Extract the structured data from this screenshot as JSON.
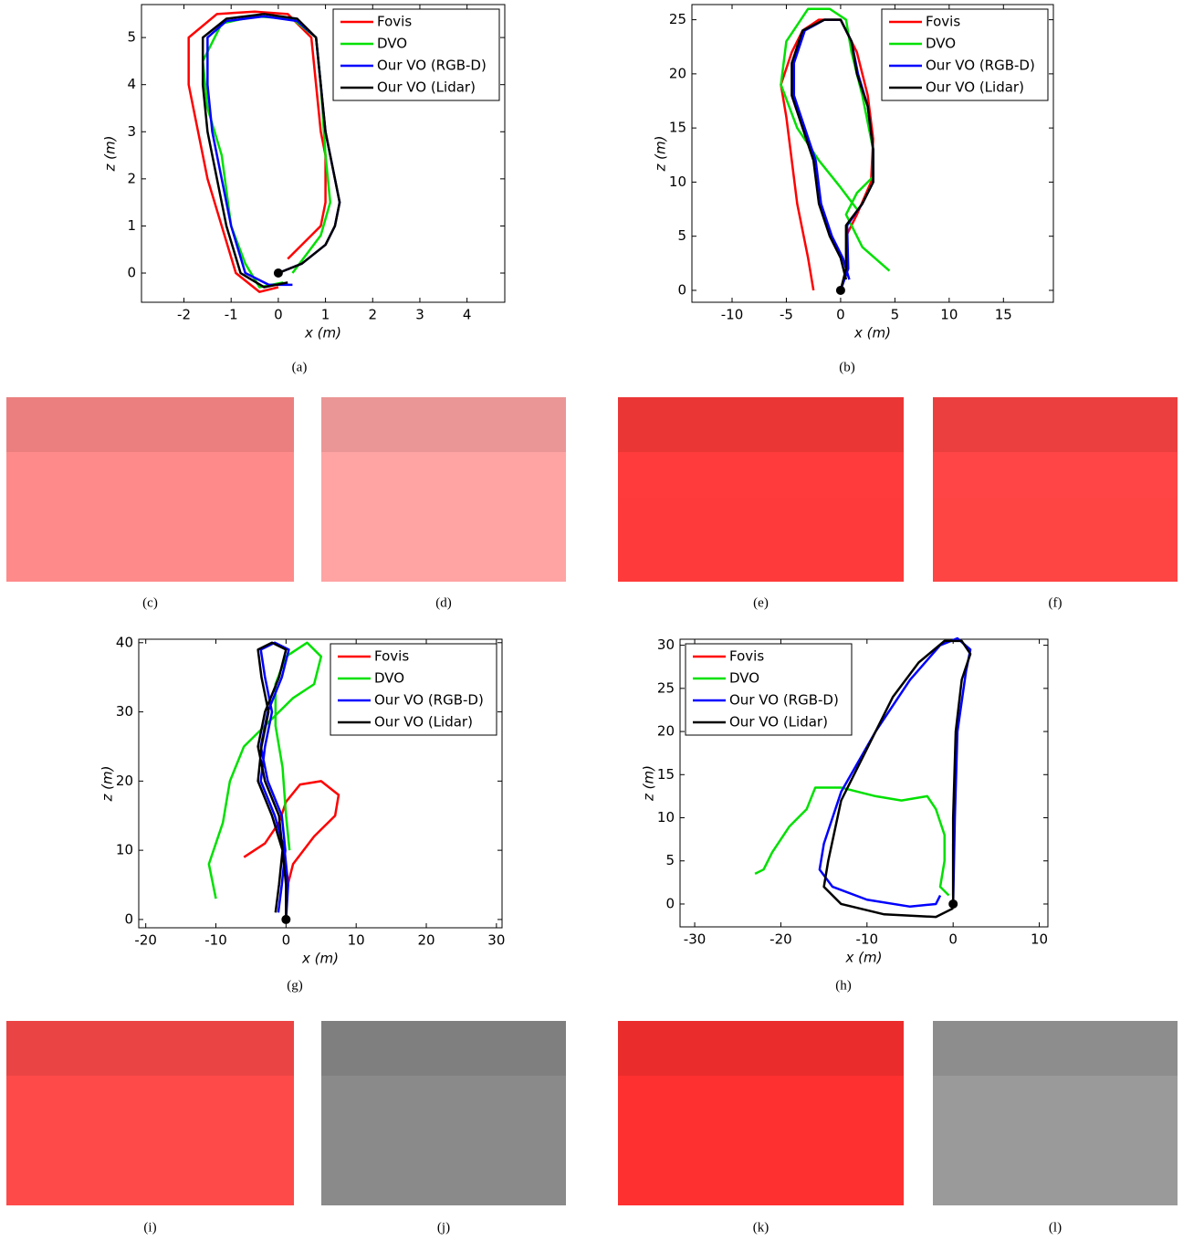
{
  "chart_data": [
    {
      "type": "line",
      "caption": "(a)",
      "xlabel": "x (m)",
      "ylabel": "z (m)",
      "legend": "upper right",
      "xlim": [
        -2.9,
        4.8
      ],
      "ylim": [
        -0.62,
        5.7
      ],
      "xticks": [
        -2,
        -1,
        0,
        1,
        2,
        3,
        4
      ],
      "yticks": [
        0,
        1,
        2,
        3,
        4,
        5
      ],
      "series": [
        {
          "name": "Fovis",
          "color": "#ff0000",
          "x": [
            0.2,
            0.9,
            1.0,
            1.0,
            0.9,
            0.8,
            0.7,
            0.2,
            -0.5,
            -1.3,
            -1.9,
            -1.9,
            -1.7,
            -1.5,
            -1.2,
            -0.9,
            -0.4,
            0
          ],
          "values": [
            0.3,
            1,
            1.5,
            2.5,
            3,
            4,
            5,
            5.5,
            5.55,
            5.5,
            5,
            4,
            3,
            2,
            1,
            0,
            -0.4,
            -0.3
          ]
        },
        {
          "name": "DVO",
          "color": "#00e000",
          "x": [
            0.3,
            0.9,
            1.1,
            1.0,
            0.9,
            0.8,
            0.3,
            -0.5,
            -1.2,
            -1.6,
            -1.5,
            -1.2,
            -1.0,
            -0.7,
            -0.4,
            0.1
          ],
          "values": [
            0,
            0.8,
            1.5,
            2.5,
            4,
            5,
            5.4,
            5.45,
            5.3,
            4.5,
            3.5,
            2.5,
            1,
            0.2,
            -0.3,
            -0.2
          ]
        },
        {
          "name": "Our VO (RGB-D)",
          "color": "#0000ff",
          "x": [
            0,
            0.5,
            1.0,
            1.2,
            1.3,
            1.1,
            1.0,
            0.9,
            0.8,
            0.4,
            -0.3,
            -1.1,
            -1.5,
            -1.5,
            -1.4,
            -1.2,
            -1.0,
            -0.7,
            -0.2,
            0.3
          ],
          "values": [
            0,
            0.2,
            0.6,
            1,
            1.5,
            2.5,
            3,
            4,
            5,
            5.35,
            5.45,
            5.35,
            5,
            4,
            3,
            2,
            1,
            0,
            -0.25,
            -0.25
          ]
        },
        {
          "name": "Our VO (Lidar)",
          "color": "#000000",
          "x": [
            0,
            0.5,
            1.0,
            1.2,
            1.3,
            1.1,
            1.0,
            0.9,
            0.8,
            0.4,
            -0.3,
            -1.1,
            -1.6,
            -1.6,
            -1.5,
            -1.3,
            -1.1,
            -0.8,
            -0.3,
            0.2
          ],
          "values": [
            0,
            0.2,
            0.6,
            1,
            1.5,
            2.5,
            3,
            4,
            5,
            5.4,
            5.5,
            5.4,
            5,
            4,
            3,
            2,
            1,
            0,
            -0.3,
            -0.2
          ]
        }
      ]
    },
    {
      "type": "line",
      "caption": "(b)",
      "xlabel": "x (m)",
      "ylabel": "z (m)",
      "legend": "upper right",
      "xlim": [
        -13.7,
        19.6
      ],
      "ylim": [
        -1.1,
        26.4
      ],
      "xticks": [
        -10,
        -5,
        0,
        5,
        10,
        15
      ],
      "yticks": [
        0,
        5,
        10,
        15,
        20,
        25
      ],
      "series": [
        {
          "name": "Fovis",
          "color": "#ff0000",
          "x": [
            -2.5,
            -3,
            -4,
            -4.5,
            -5,
            -5.5,
            -4.5,
            -3.5,
            -2,
            0,
            1.5,
            2.5,
            3,
            2.8,
            1.5,
            0.5
          ],
          "values": [
            0,
            3,
            8,
            12,
            16,
            19,
            22,
            24,
            25,
            25,
            22,
            18,
            14,
            10,
            7,
            5
          ]
        },
        {
          "name": "DVO",
          "color": "#00e000",
          "x": [
            4.5,
            2,
            0.5,
            1.5,
            3,
            3,
            2,
            1,
            0.5,
            -1,
            -3,
            -5,
            -5.5,
            -4,
            -2,
            0,
            1.5
          ],
          "values": [
            1.8,
            4,
            7,
            9,
            10.5,
            13,
            18,
            22,
            25,
            26,
            26,
            23,
            19,
            15,
            12,
            9.5,
            7.5
          ]
        },
        {
          "name": "Our VO (RGB-D)",
          "color": "#0000ff",
          "x": [
            0,
            0.7,
            0.6,
            2,
            3,
            3,
            2.5,
            1.6,
            1,
            0,
            -1.5,
            -3.3,
            -4.3,
            -4.3,
            -3.3,
            -2.3,
            -1.8,
            -0.8,
            0.2,
            0.8
          ],
          "values": [
            0,
            2,
            6,
            8,
            10,
            13,
            17,
            20,
            23,
            25,
            25,
            24,
            21,
            18,
            15,
            12,
            8,
            5,
            3,
            1
          ]
        },
        {
          "name": "Our VO (Lidar)",
          "color": "#000000",
          "x": [
            0,
            0.5,
            0.5,
            2,
            3,
            3,
            2.5,
            1.5,
            1,
            0,
            -1.5,
            -3.5,
            -4.5,
            -4.5,
            -3.5,
            -2.5,
            -2,
            -1,
            0,
            0.5
          ],
          "values": [
            0,
            2,
            6,
            8,
            10,
            13,
            17,
            20,
            23,
            25,
            25,
            24,
            21,
            18,
            15,
            12,
            8,
            5,
            3,
            1
          ]
        }
      ]
    },
    {
      "type": "line",
      "caption": "(g)",
      "xlabel": "x (m)",
      "ylabel": "z (m)",
      "legend": "upper right",
      "xlim": [
        -21,
        30.8
      ],
      "ylim": [
        -1.2,
        40.5
      ],
      "xticks": [
        -20,
        -10,
        0,
        10,
        20,
        30
      ],
      "yticks": [
        0,
        10,
        20,
        30,
        40
      ],
      "series": [
        {
          "name": "Fovis",
          "color": "#ff0000",
          "x": [
            -6,
            -3,
            -1,
            0,
            2,
            5,
            7.5,
            7,
            4,
            1,
            0,
            0
          ],
          "values": [
            9,
            11,
            14,
            17,
            19.5,
            20,
            18,
            15,
            12,
            8,
            4,
            0
          ]
        },
        {
          "name": "DVO",
          "color": "#00e000",
          "x": [
            -10,
            -11,
            -9,
            -8,
            -6,
            -3,
            1,
            4,
            5,
            3,
            0,
            -1.5,
            -1.5,
            -0.5,
            0,
            0.5
          ],
          "values": [
            3,
            8,
            14,
            20,
            25,
            28,
            32,
            34,
            38,
            40,
            38,
            34,
            28,
            22,
            15,
            10
          ]
        },
        {
          "name": "Our VO (RGB-D)",
          "color": "#0000ff",
          "x": [
            0,
            0.3,
            -0.2,
            -1.6,
            -3.6,
            -3,
            -2,
            -3,
            -3.6,
            -1.6,
            0.4,
            -0.6,
            -2.6,
            -3.6,
            -2.6,
            -0.6,
            -0.1,
            -0.6,
            -1.1
          ],
          "values": [
            0,
            5,
            10,
            15,
            20,
            25,
            30,
            35,
            39,
            40,
            39,
            35,
            30,
            25,
            20,
            15,
            10,
            5,
            1
          ]
        },
        {
          "name": "Our VO (Lidar)",
          "color": "#000000",
          "x": [
            0,
            0,
            -0.5,
            -2,
            -4,
            -3.5,
            -2.5,
            -3.5,
            -4,
            -2,
            0,
            -1,
            -3,
            -4,
            -3,
            -1,
            -0.5,
            -1,
            -1.5
          ],
          "values": [
            0,
            5,
            10,
            15,
            20,
            25,
            30,
            35,
            39,
            40,
            39,
            35,
            30,
            25,
            20,
            15,
            10,
            5,
            1
          ]
        }
      ]
    },
    {
      "type": "line",
      "caption": "(h)",
      "xlabel": "x (m)",
      "ylabel": "z (m)",
      "legend": "upper left",
      "xlim": [
        -31.7,
        11
      ],
      "ylim": [
        -2.65,
        30.7
      ],
      "xticks": [
        -30,
        -20,
        -10,
        0,
        10
      ],
      "yticks": [
        0,
        5,
        10,
        15,
        20,
        25,
        30
      ],
      "series": [
        {
          "name": "Fovis",
          "color": "#ff0000",
          "x": [
            0,
            0
          ],
          "values": [
            1,
            7
          ]
        },
        {
          "name": "DVO",
          "color": "#00e000",
          "x": [
            -23,
            -22,
            -21,
            -19,
            -17,
            -16,
            -13,
            -9,
            -6,
            -3,
            -2,
            -1,
            -1,
            -1.5,
            -0.5
          ],
          "values": [
            3.5,
            4,
            6,
            9,
            11,
            13.5,
            13.5,
            12.5,
            12,
            12.5,
            11,
            8,
            5,
            2,
            1
          ]
        },
        {
          "name": "Our VO (RGB-D)",
          "color": "#0000ff",
          "x": [
            0,
            0.2,
            0.5,
            1.5,
            2,
            0.5,
            -1.5,
            -5,
            -9,
            -13,
            -15,
            -15.5,
            -14,
            -10,
            -5,
            -2,
            -1.5
          ],
          "values": [
            0,
            10,
            20,
            27,
            29.5,
            30.8,
            30,
            26,
            20,
            13,
            7,
            4,
            2,
            0.5,
            -0.3,
            0,
            1
          ]
        },
        {
          "name": "Our VO (Lidar)",
          "color": "#000000",
          "x": [
            0,
            0,
            0.3,
            1,
            2,
            1,
            -1,
            -4,
            -7,
            -10,
            -13,
            -14.5,
            -15,
            -13,
            -8,
            -2,
            0
          ],
          "values": [
            0,
            10,
            20,
            26,
            29,
            30.5,
            30.5,
            28,
            24,
            18,
            12,
            5,
            2,
            0,
            -1.2,
            -1.5,
            -0.5
          ]
        }
      ]
    }
  ],
  "images": [
    {
      "caption": "(c)",
      "tint": "#ff8a8a"
    },
    {
      "caption": "(d)",
      "tint": "#ffa3a3"
    },
    {
      "caption": "(e)",
      "tint": "#ff3b3b"
    },
    {
      "caption": "(f)",
      "tint": "#ff4545"
    },
    {
      "caption": "(i)",
      "tint": "#ff4a4a"
    },
    {
      "caption": "(j)",
      "tint": "#8a8a8a"
    },
    {
      "caption": "(k)",
      "tint": "#ff3030"
    },
    {
      "caption": "(l)",
      "tint": "#9a9a9a"
    }
  ]
}
